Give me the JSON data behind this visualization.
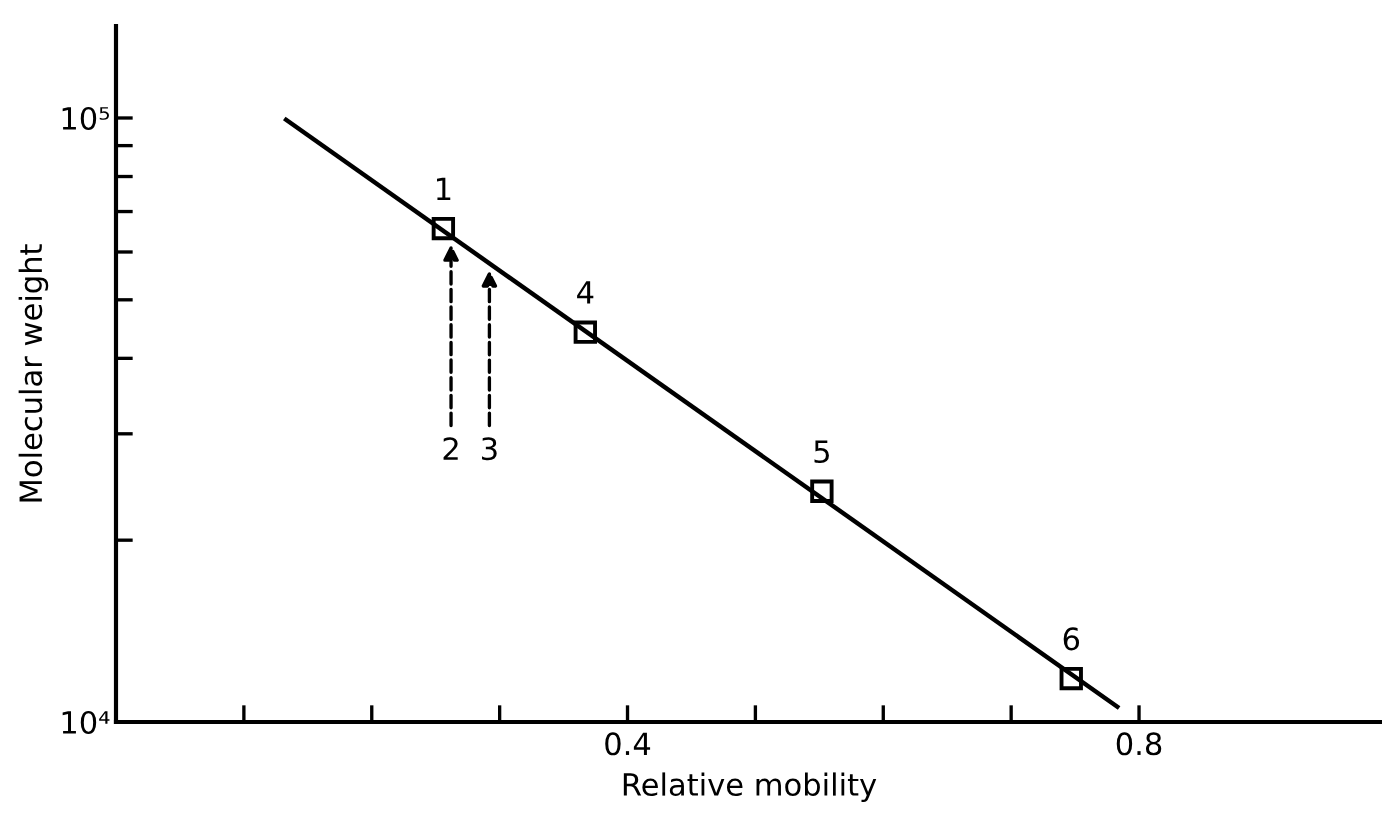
{
  "chart_data": {
    "type": "scatter",
    "xlabel": "Relative mobility",
    "ylabel": "Molecular weight",
    "x": [
      0.256,
      0.367,
      0.552,
      0.747
    ],
    "series": [
      {
        "color": "#000000",
        "marker": "square",
        "values": [
          65600,
          44200,
          24100,
          11800
        ]
      },
      {
        "type": "line",
        "color": "#000000",
        "marker": "none",
        "line_style": "solid",
        "x": [
          0.133,
          0.783
        ],
        "values": [
          99300,
          10600
        ]
      }
    ],
    "annotations": [
      {
        "text": "1",
        "x": 0.256,
        "y": 65600
      },
      {
        "text": "4",
        "x": 0.367,
        "y": 44200
      },
      {
        "text": "5",
        "x": 0.552,
        "y": 24100
      },
      {
        "text": "6",
        "x": 0.747,
        "y": 11800
      },
      {
        "text": "2",
        "x": 0.262,
        "y": 61800
      },
      {
        "text": "3",
        "x": 0.292,
        "y": 56000
      }
    ],
    "log": "y",
    "xlim": [
      0,
      0.99
    ],
    "ylim": [
      10000,
      142000
    ],
    "xticks": [
      {
        "value": 0.1,
        "label": null
      },
      {
        "value": 0.2,
        "label": null
      },
      {
        "value": 0.3,
        "label": null
      },
      {
        "value": 0.4,
        "label": "0.4"
      },
      {
        "value": 0.5,
        "label": null
      },
      {
        "value": 0.6,
        "label": null
      },
      {
        "value": 0.7,
        "label": null
      },
      {
        "value": 0.8,
        "label": "0.8"
      }
    ],
    "yticks": [
      {
        "value": 10000,
        "label": "10⁴"
      },
      {
        "value": 20000,
        "label": null
      },
      {
        "value": 30000,
        "label": null
      },
      {
        "value": 40000,
        "label": null
      },
      {
        "value": 50000,
        "label": null
      },
      {
        "value": 60000,
        "label": null
      },
      {
        "value": 70000,
        "label": null
      },
      {
        "value": 80000,
        "label": null
      },
      {
        "value": 90000,
        "label": null
      },
      {
        "value": 100000,
        "label": "10⁵"
      }
    ],
    "grid": false,
    "legend": false
  }
}
